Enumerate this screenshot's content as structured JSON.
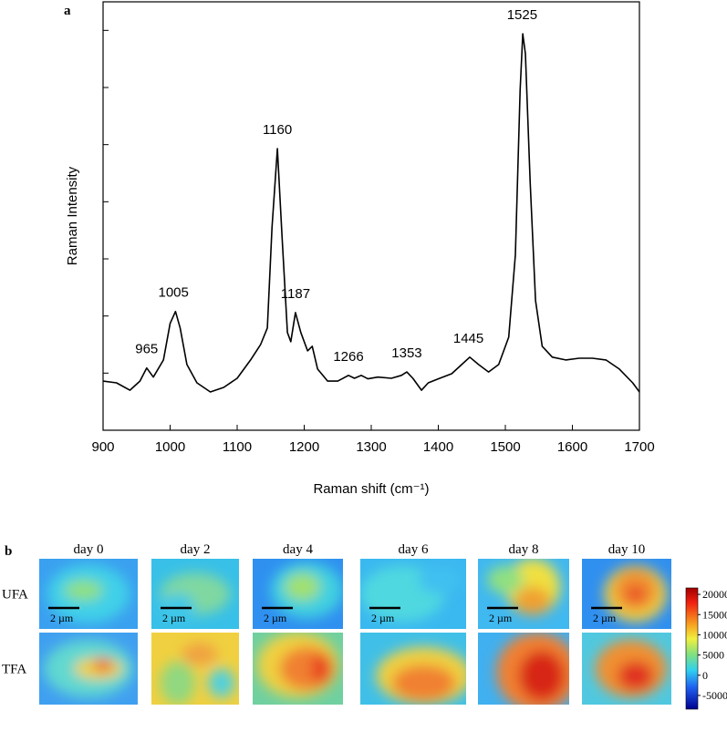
{
  "chart_data": {
    "type": "line",
    "panel_label": "a",
    "xlabel": "Raman shift (cm⁻¹)",
    "ylabel": "Raman Intensity",
    "x": [
      900,
      920,
      940,
      955,
      965,
      975,
      990,
      1000,
      1008,
      1015,
      1025,
      1040,
      1060,
      1080,
      1100,
      1120,
      1135,
      1145,
      1152,
      1160,
      1167,
      1175,
      1180,
      1187,
      1195,
      1205,
      1212,
      1220,
      1235,
      1250,
      1266,
      1275,
      1285,
      1295,
      1310,
      1330,
      1345,
      1353,
      1362,
      1375,
      1385,
      1400,
      1420,
      1435,
      1447,
      1460,
      1475,
      1490,
      1505,
      1515,
      1522,
      1526,
      1530,
      1537,
      1545,
      1555,
      1570,
      1590,
      1610,
      1630,
      1650,
      1670,
      1690,
      1700
    ],
    "values": [
      0.86,
      0.83,
      0.7,
      0.86,
      1.09,
      0.93,
      1.23,
      1.87,
      2.08,
      1.79,
      1.15,
      0.83,
      0.67,
      0.75,
      0.91,
      1.23,
      1.5,
      1.79,
      3.55,
      4.93,
      3.39,
      1.71,
      1.55,
      2.06,
      1.71,
      1.39,
      1.47,
      1.07,
      0.86,
      0.86,
      0.96,
      0.91,
      0.96,
      0.9,
      0.93,
      0.91,
      0.96,
      1.02,
      0.91,
      0.7,
      0.83,
      0.9,
      0.99,
      1.15,
      1.28,
      1.15,
      1.02,
      1.15,
      1.63,
      3.07,
      5.95,
      6.94,
      6.59,
      4.35,
      2.27,
      1.47,
      1.28,
      1.23,
      1.26,
      1.26,
      1.23,
      1.07,
      0.83,
      0.67
    ],
    "color": "#000000",
    "xlim": [
      900,
      1700
    ],
    "xticks": [
      900,
      1000,
      1100,
      1200,
      1300,
      1400,
      1500,
      1600,
      1700
    ],
    "ylim": [
      0,
      7.5
    ],
    "yticks": [
      0,
      1,
      2,
      3,
      4,
      5,
      6,
      7
    ],
    "annotations": [
      {
        "text": "965",
        "x": 965
      },
      {
        "text": "1005",
        "x": 1005
      },
      {
        "text": "1160",
        "x": 1160
      },
      {
        "text": "1187",
        "x": 1187
      },
      {
        "text": "1266",
        "x": 1266
      },
      {
        "text": "1353",
        "x": 1353
      },
      {
        "text": "1445",
        "x": 1445
      },
      {
        "text": "1525",
        "x": 1525
      }
    ]
  },
  "panel_b": {
    "panel_label": "b",
    "columns": [
      "day 0",
      "day 2",
      "day 4",
      "day 6",
      "day 8",
      "day 10"
    ],
    "rows": [
      "UFA",
      "TFA"
    ],
    "scale_bar": "2 µm",
    "colorbar": {
      "clim": [
        -8400,
        21600
      ],
      "ticks": [
        20000,
        15000,
        10000,
        5000,
        0,
        -5000
      ]
    }
  }
}
